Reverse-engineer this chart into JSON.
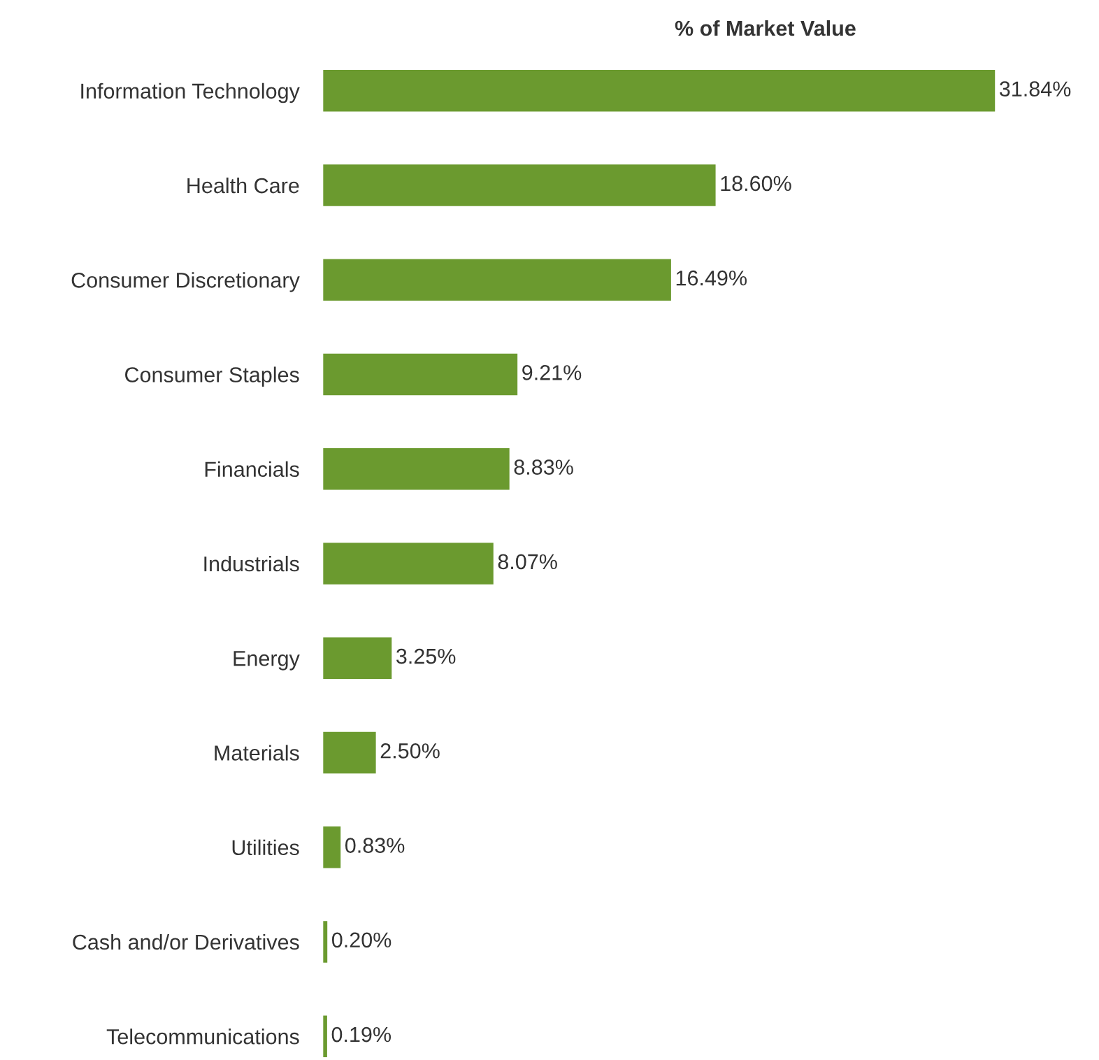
{
  "chart_data": {
    "type": "bar",
    "orientation": "horizontal",
    "title": "% of Market Value",
    "categories": [
      "Information Technology",
      "Health Care",
      "Consumer Discretionary",
      "Consumer Staples",
      "Financials",
      "Industrials",
      "Energy",
      "Materials",
      "Utilities",
      "Cash and/or Derivatives",
      "Telecommunications"
    ],
    "values": [
      31.84,
      18.6,
      16.49,
      9.21,
      8.83,
      8.07,
      3.25,
      2.5,
      0.83,
      0.2,
      0.19
    ],
    "value_labels": [
      "31.84%",
      "18.60%",
      "16.49%",
      "9.21%",
      "8.83%",
      "8.07%",
      "3.25%",
      "2.50%",
      "0.83%",
      "0.20%",
      "0.19%"
    ],
    "color": "#6b9a2f"
  }
}
